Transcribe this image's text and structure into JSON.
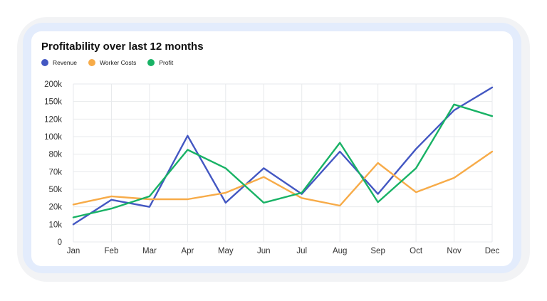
{
  "colors": {
    "revenue": "#4357c2",
    "worker_costs": "#f7ab48",
    "profit": "#18b265",
    "grid": "#e7e9ec"
  },
  "chart_data": {
    "type": "line",
    "title": "Profitability over last 12 months",
    "categories": [
      "Jan",
      "Feb",
      "Mar",
      "Apr",
      "May",
      "Jun",
      "Jul",
      "Aug",
      "Sep",
      "Oct",
      "Nov",
      "Dec"
    ],
    "y_ticks": [
      "0",
      "10k",
      "20k",
      "50k",
      "70k",
      "80k",
      "100k",
      "120k",
      "150k",
      "200k"
    ],
    "legend_position": "top-left",
    "grid": true,
    "series": [
      {
        "name": "Revenue",
        "color": "#4357c2",
        "values": [
          10,
          32,
          20,
          101,
          27,
          72,
          42,
          83,
          42,
          86,
          135,
          190
        ]
      },
      {
        "name": "Worker Costs",
        "color": "#f7ab48",
        "values": [
          24,
          38,
          33,
          33,
          44,
          64,
          35,
          22,
          75,
          45,
          63,
          83
        ]
      },
      {
        "name": "Profit",
        "color": "#18b265",
        "values": [
          14,
          19,
          38,
          85,
          72,
          27,
          44,
          93,
          28,
          72,
          145,
          125
        ]
      }
    ]
  }
}
